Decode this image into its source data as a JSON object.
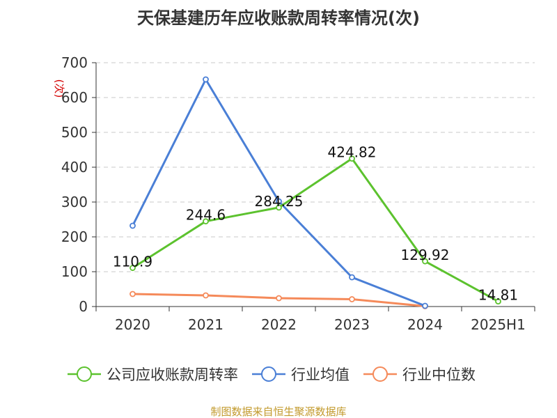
{
  "chart_data": {
    "type": "line",
    "title": "天保基建历年应收账款周转率情况(次)",
    "ylabel": "(次)",
    "xlabel": "",
    "categories": [
      "2020",
      "2021",
      "2022",
      "2023",
      "2024",
      "2025H1"
    ],
    "ylim": [
      0,
      700
    ],
    "yticks": [
      0,
      100,
      200,
      300,
      400,
      500,
      600,
      700
    ],
    "grid": true,
    "legend_position": "bottom",
    "series": [
      {
        "name": "公司应收账款周转率",
        "color": "#5cc22e",
        "values": [
          110.9,
          244.6,
          284.25,
          424.82,
          129.92,
          14.81
        ],
        "labels": [
          "110.9",
          "244.6",
          "284.25",
          "424.82",
          "129.92",
          "14.81"
        ]
      },
      {
        "name": "行业均值",
        "color": "#4a7fd6",
        "values": [
          232,
          652,
          302,
          84,
          2,
          null
        ]
      },
      {
        "name": "行业中位数",
        "color": "#f58a5a",
        "values": [
          36,
          32,
          24,
          21,
          1,
          null
        ]
      }
    ]
  },
  "source": "制图数据来自恒生聚源数据库"
}
